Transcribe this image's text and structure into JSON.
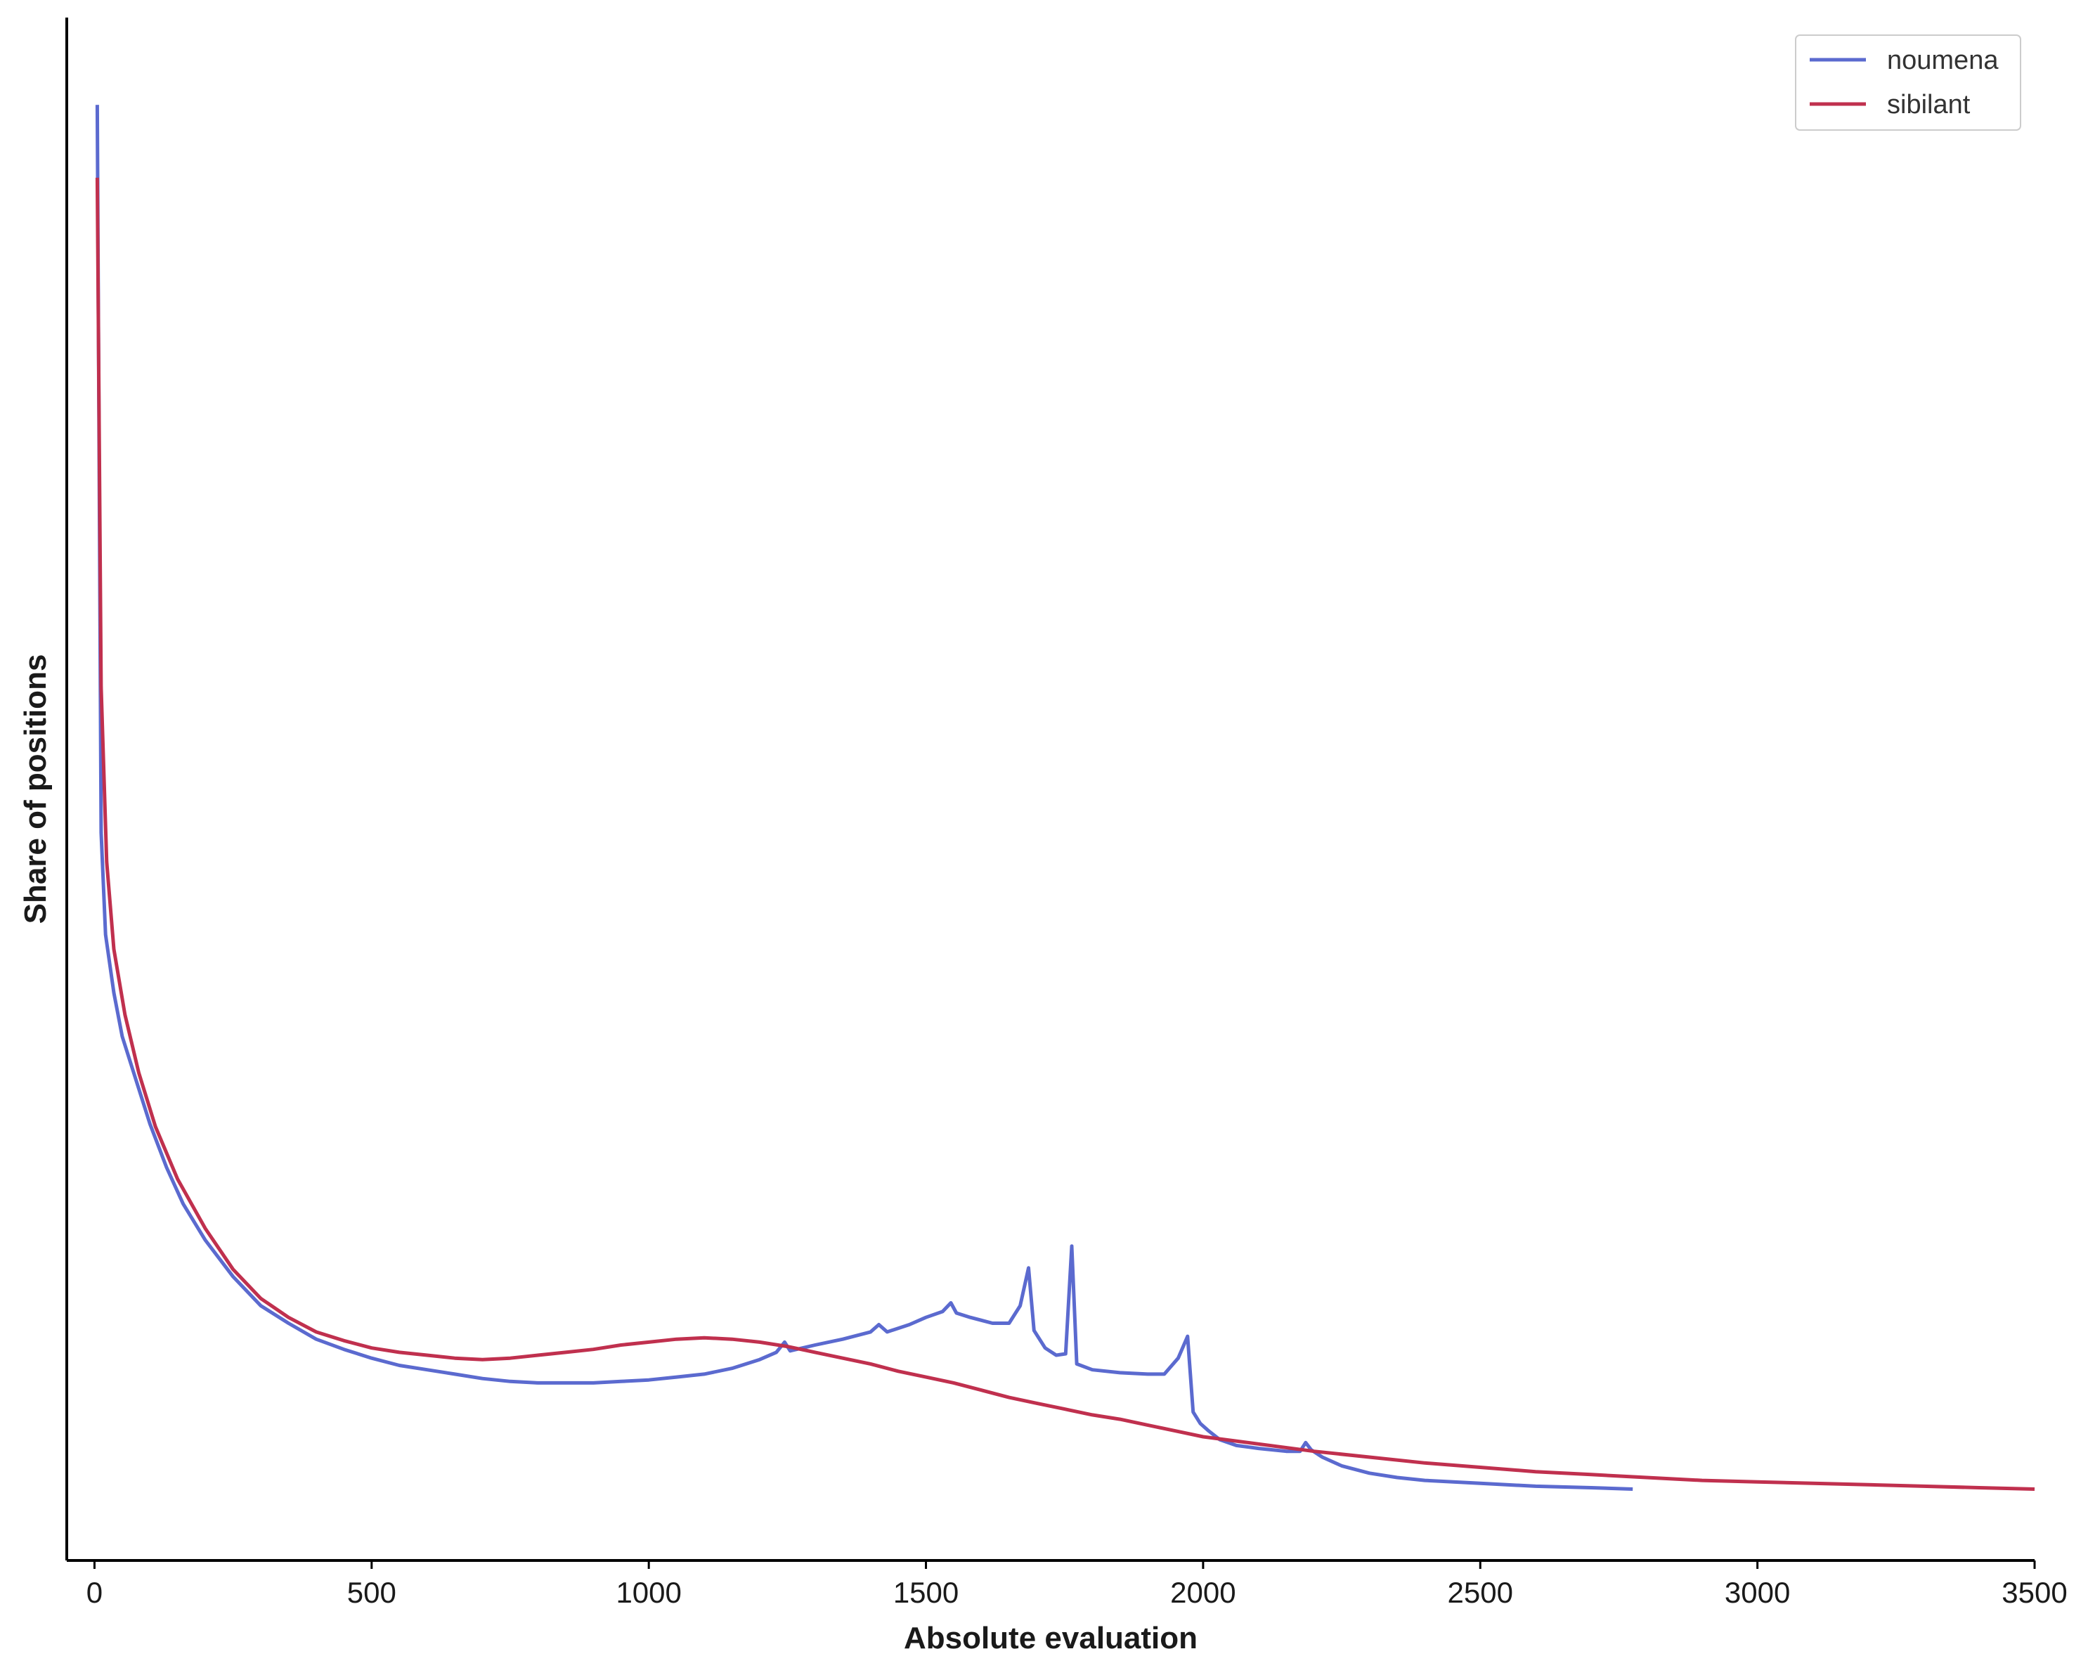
{
  "chart_data": {
    "type": "line",
    "title": "",
    "xlabel": "Absolute evaluation",
    "ylabel": "Share of positions",
    "xlim": [
      -50,
      3500
    ],
    "ylim": [
      0,
      1.06
    ],
    "xticks": [
      0,
      500,
      1000,
      1500,
      2000,
      2500,
      3000,
      3500
    ],
    "x_tick_labels": [
      "0",
      "500",
      "1000",
      "1500",
      "2000",
      "2500",
      "3000",
      "3500"
    ],
    "y_tick_labels_shown": false,
    "grid": false,
    "legend": {
      "placement": "top-right"
    },
    "series": [
      {
        "name": "noumena",
        "color": "#5b6acf",
        "points": [
          [
            5,
            1.0
          ],
          [
            12,
            0.5
          ],
          [
            20,
            0.43
          ],
          [
            35,
            0.39
          ],
          [
            50,
            0.36
          ],
          [
            75,
            0.33
          ],
          [
            100,
            0.3
          ],
          [
            130,
            0.27
          ],
          [
            160,
            0.245
          ],
          [
            200,
            0.22
          ],
          [
            250,
            0.195
          ],
          [
            300,
            0.175
          ],
          [
            350,
            0.163
          ],
          [
            400,
            0.152
          ],
          [
            450,
            0.145
          ],
          [
            500,
            0.139
          ],
          [
            550,
            0.134
          ],
          [
            600,
            0.131
          ],
          [
            650,
            0.128
          ],
          [
            700,
            0.125
          ],
          [
            750,
            0.123
          ],
          [
            800,
            0.122
          ],
          [
            850,
            0.122
          ],
          [
            900,
            0.122
          ],
          [
            950,
            0.123
          ],
          [
            1000,
            0.124
          ],
          [
            1050,
            0.126
          ],
          [
            1100,
            0.128
          ],
          [
            1150,
            0.132
          ],
          [
            1200,
            0.138
          ],
          [
            1230,
            0.143
          ],
          [
            1245,
            0.15
          ],
          [
            1255,
            0.144
          ],
          [
            1300,
            0.148
          ],
          [
            1350,
            0.152
          ],
          [
            1400,
            0.157
          ],
          [
            1415,
            0.162
          ],
          [
            1430,
            0.157
          ],
          [
            1470,
            0.162
          ],
          [
            1500,
            0.167
          ],
          [
            1530,
            0.171
          ],
          [
            1545,
            0.177
          ],
          [
            1555,
            0.17
          ],
          [
            1580,
            0.167
          ],
          [
            1620,
            0.163
          ],
          [
            1650,
            0.163
          ],
          [
            1670,
            0.175
          ],
          [
            1685,
            0.201
          ],
          [
            1695,
            0.158
          ],
          [
            1715,
            0.146
          ],
          [
            1735,
            0.141
          ],
          [
            1752,
            0.142
          ],
          [
            1763,
            0.216
          ],
          [
            1772,
            0.135
          ],
          [
            1800,
            0.131
          ],
          [
            1850,
            0.129
          ],
          [
            1900,
            0.128
          ],
          [
            1930,
            0.128
          ],
          [
            1955,
            0.139
          ],
          [
            1972,
            0.154
          ],
          [
            1982,
            0.102
          ],
          [
            1995,
            0.094
          ],
          [
            2010,
            0.089
          ],
          [
            2030,
            0.083
          ],
          [
            2060,
            0.079
          ],
          [
            2100,
            0.077
          ],
          [
            2150,
            0.075
          ],
          [
            2175,
            0.075
          ],
          [
            2185,
            0.081
          ],
          [
            2195,
            0.076
          ],
          [
            2215,
            0.071
          ],
          [
            2250,
            0.065
          ],
          [
            2300,
            0.06
          ],
          [
            2350,
            0.057
          ],
          [
            2400,
            0.055
          ],
          [
            2500,
            0.053
          ],
          [
            2600,
            0.051
          ],
          [
            2700,
            0.05
          ],
          [
            2775,
            0.049
          ]
        ]
      },
      {
        "name": "sibilant",
        "color": "#c0304e",
        "points": [
          [
            5,
            0.95
          ],
          [
            12,
            0.6
          ],
          [
            22,
            0.48
          ],
          [
            35,
            0.42
          ],
          [
            55,
            0.375
          ],
          [
            80,
            0.335
          ],
          [
            110,
            0.298
          ],
          [
            150,
            0.262
          ],
          [
            200,
            0.228
          ],
          [
            250,
            0.2
          ],
          [
            300,
            0.18
          ],
          [
            350,
            0.167
          ],
          [
            400,
            0.157
          ],
          [
            450,
            0.151
          ],
          [
            500,
            0.146
          ],
          [
            550,
            0.143
          ],
          [
            600,
            0.141
          ],
          [
            650,
            0.139
          ],
          [
            700,
            0.138
          ],
          [
            750,
            0.139
          ],
          [
            800,
            0.141
          ],
          [
            850,
            0.143
          ],
          [
            900,
            0.145
          ],
          [
            950,
            0.148
          ],
          [
            1000,
            0.15
          ],
          [
            1050,
            0.152
          ],
          [
            1100,
            0.153
          ],
          [
            1150,
            0.152
          ],
          [
            1200,
            0.15
          ],
          [
            1250,
            0.147
          ],
          [
            1300,
            0.143
          ],
          [
            1350,
            0.139
          ],
          [
            1400,
            0.135
          ],
          [
            1450,
            0.13
          ],
          [
            1500,
            0.126
          ],
          [
            1550,
            0.122
          ],
          [
            1600,
            0.117
          ],
          [
            1650,
            0.112
          ],
          [
            1700,
            0.108
          ],
          [
            1750,
            0.104
          ],
          [
            1800,
            0.1
          ],
          [
            1850,
            0.097
          ],
          [
            1900,
            0.093
          ],
          [
            1950,
            0.089
          ],
          [
            2000,
            0.085
          ],
          [
            2100,
            0.08
          ],
          [
            2200,
            0.075
          ],
          [
            2300,
            0.071
          ],
          [
            2400,
            0.067
          ],
          [
            2500,
            0.064
          ],
          [
            2600,
            0.061
          ],
          [
            2700,
            0.059
          ],
          [
            2800,
            0.057
          ],
          [
            2900,
            0.055
          ],
          [
            3000,
            0.054
          ],
          [
            3100,
            0.053
          ],
          [
            3200,
            0.052
          ],
          [
            3300,
            0.051
          ],
          [
            3400,
            0.05
          ],
          [
            3500,
            0.049
          ]
        ]
      }
    ]
  }
}
